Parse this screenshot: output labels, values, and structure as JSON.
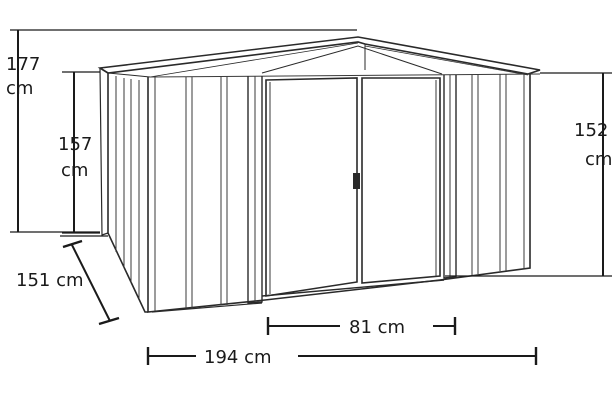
{
  "dimensions": {
    "total_height": {
      "value": "177",
      "unit": "cm"
    },
    "wall_height_left": {
      "value": "157",
      "unit": "cm"
    },
    "wall_height_right": {
      "value": "152",
      "unit": "cm"
    },
    "depth": {
      "label": "151 cm"
    },
    "door_width": {
      "label": "81 cm"
    },
    "total_width": {
      "label": "194 cm"
    }
  },
  "colors": {
    "ink": "#2a2a2a",
    "background": "#ffffff"
  }
}
